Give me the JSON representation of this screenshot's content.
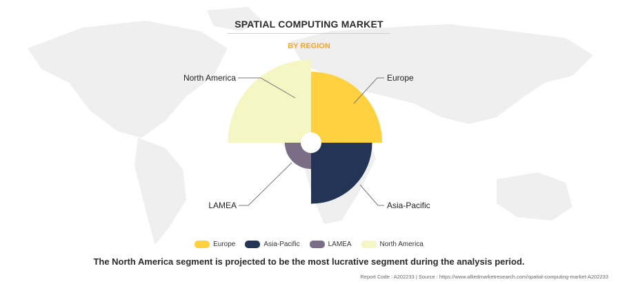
{
  "header": {
    "title": "SPATIAL COMPUTING MARKET",
    "subtitle": "BY REGION"
  },
  "chart_data": {
    "type": "pie",
    "variant": "polar-area (rose)",
    "categories": [
      "Europe",
      "Asia-Pacific",
      "LAMEA",
      "North America"
    ],
    "values": [
      1.0,
      0.86,
      0.37,
      1.17
    ],
    "value_note": "relative radii (no values printed)",
    "colors": [
      "#FFD140",
      "#233457",
      "#7B6D85",
      "#F6F5C4"
    ],
    "legend_position": "bottom"
  },
  "legend": {
    "items": [
      {
        "label": "Europe",
        "color": "#FFD140"
      },
      {
        "label": "Asia-Pacific",
        "color": "#233457"
      },
      {
        "label": "LAMEA",
        "color": "#7B6D85"
      },
      {
        "label": "North America",
        "color": "#F6F5C4"
      }
    ]
  },
  "caption": "The North America segment is projected to be the most lucrative segment during the analysis period.",
  "footer": "Report Code : A202233  |  Source : https://www.alliedmarketresearch.com/spatial-computing-market-A202233"
}
